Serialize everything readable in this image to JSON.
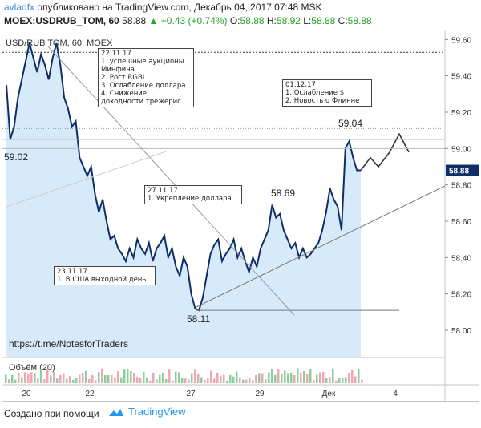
{
  "header": {
    "author": "avladfx",
    "published": "опубликовано на TradingView.com, Декабрь 04, 2017 07:48 MSK",
    "symbol": "MOEX:USDRUB_TOM, 60",
    "last": "58.88",
    "change": "+0.43 (+0.74%)",
    "o_label": "O:",
    "o": "58.88",
    "h_label": "H:",
    "h": "58.92",
    "l_label": "L:",
    "l": "58.88",
    "c_label": "C:",
    "c": "58.88"
  },
  "pane_title": "USD/RUB TOM, 60, MOEX",
  "volume_label": "Объём (20)",
  "watermark": "https://t.me/NotesforTraders",
  "footer": {
    "created_with": "Создано при помощи",
    "brand": "TradingView"
  },
  "colors": {
    "line": "#0d2e67",
    "area": "#bcdcf7",
    "up": "#27a327",
    "price_tag": "#0d2e67"
  },
  "annotations": {
    "n1": "22.11.17\n1. успешные аукционы Минфина\n2. Рост RGBI\n3. Ослабление доллара\n4. Снижение доходности трежерис.",
    "n2": "01.12.17\n1. Ослабление $\n2. Новость о Флинне",
    "n3": "27.11.17\n1. Укрепление доллара",
    "n4": "23.11.17\n1. В США выходной день"
  },
  "chart_data": {
    "type": "area",
    "title": "USD/RUB TOM, 60, MOEX",
    "x_ticks": [
      "20",
      "22",
      "27",
      "29",
      "Дек",
      "4"
    ],
    "y_ticks": [
      "59.60",
      "59.40",
      "59.20",
      "59.00",
      "58.80",
      "58.60",
      "58.40",
      "58.20",
      "58.00"
    ],
    "ylim": [
      57.85,
      59.65
    ],
    "current_price": "58.88",
    "price_labels": [
      "59.02",
      "58.69",
      "59.04",
      "58.11"
    ],
    "series": [
      {
        "values": [
          59.35,
          59.05,
          59.12,
          59.28,
          59.38,
          59.48,
          59.58,
          59.5,
          59.42,
          59.52,
          59.46,
          59.38,
          59.5,
          59.58,
          59.46,
          59.28,
          59.22,
          59.12,
          59.15,
          58.95,
          58.9,
          58.85,
          58.9,
          58.75,
          58.65,
          58.72,
          58.6,
          58.5,
          58.52,
          58.45,
          58.42,
          58.38,
          58.45,
          58.4,
          58.5,
          58.45,
          58.42,
          58.48,
          58.38,
          58.45,
          58.48,
          58.52,
          58.4,
          58.45,
          58.35,
          58.3,
          58.4,
          58.35,
          58.2,
          58.12,
          58.11,
          58.18,
          58.3,
          58.42,
          58.47,
          58.5,
          58.38,
          58.42,
          58.45,
          58.5,
          58.4,
          58.45,
          58.38,
          58.32,
          58.4,
          58.35,
          58.45,
          58.5,
          58.55,
          58.69,
          58.62,
          58.64,
          58.55,
          58.5,
          58.45,
          58.48,
          58.4,
          58.45,
          58.4,
          58.42,
          58.45,
          58.48,
          58.55,
          58.65,
          58.78,
          58.72,
          58.68,
          58.55,
          59.0,
          59.04,
          58.95,
          58.88,
          58.88
        ]
      }
    ],
    "forecast": [
      58.88,
      58.95,
      58.9,
      58.98,
      59.08,
      58.98
    ],
    "levels": [
      59.53,
      59.11,
      59.05,
      59.0,
      58.11
    ]
  }
}
